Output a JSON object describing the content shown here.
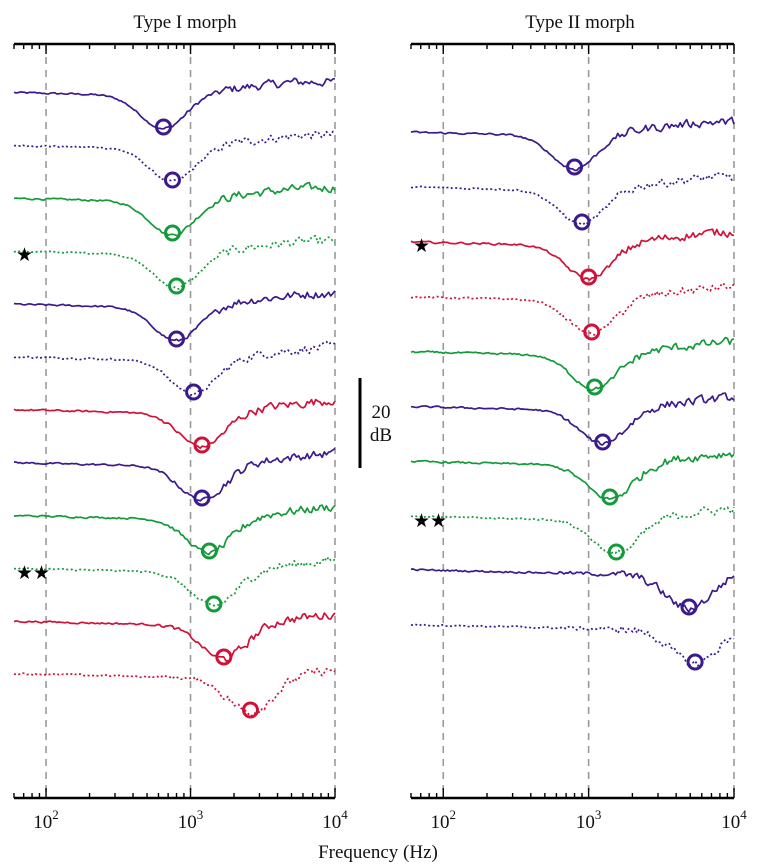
{
  "chart_data": [
    {
      "type": "line",
      "title": "Type I morph",
      "x_scale": "log",
      "xlim": [
        60,
        10000
      ],
      "x_ticks": [
        {
          "value": 100,
          "label": "10",
          "exp": "2"
        },
        {
          "value": 1000,
          "label": "10",
          "exp": "3"
        },
        {
          "value": 10000,
          "label": "10",
          "exp": "4"
        }
      ],
      "grid": "vertical dashed at 10^2, 10^3, 10^4",
      "series": [
        {
          "color": "#3a1a8c",
          "style": "solid",
          "minimum": 650,
          "stars": 0
        },
        {
          "color": "#3a1a8c",
          "style": "dotted",
          "minimum": 750,
          "stars": 0
        },
        {
          "color": "#149a3a",
          "style": "solid",
          "minimum": 750,
          "stars": 0
        },
        {
          "color": "#149a3a",
          "style": "dotted",
          "minimum": 800,
          "stars": 1
        },
        {
          "color": "#3a1a8c",
          "style": "solid",
          "minimum": 800,
          "stars": 0
        },
        {
          "color": "#3a1a8c",
          "style": "dotted",
          "minimum": 1050,
          "stars": 0
        },
        {
          "color": "#d01238",
          "style": "solid",
          "minimum": 1200,
          "stars": 0
        },
        {
          "color": "#3a1a8c",
          "style": "solid",
          "minimum": 1200,
          "stars": 0
        },
        {
          "color": "#149a3a",
          "style": "solid",
          "minimum": 1350,
          "stars": 0
        },
        {
          "color": "#149a3a",
          "style": "dotted",
          "minimum": 1450,
          "stars": 2
        },
        {
          "color": "#d01238",
          "style": "solid",
          "minimum": 1700,
          "stars": 0
        },
        {
          "color": "#d01238",
          "style": "dotted",
          "minimum": 2600,
          "stars": 0
        }
      ]
    },
    {
      "type": "line",
      "title": "Type II morph",
      "x_scale": "log",
      "xlim": [
        60,
        10000
      ],
      "x_ticks": [
        {
          "value": 100,
          "label": "10",
          "exp": "2"
        },
        {
          "value": 1000,
          "label": "10",
          "exp": "3"
        },
        {
          "value": 10000,
          "label": "10",
          "exp": "4"
        }
      ],
      "grid": "vertical dashed at 10^2, 10^3, 10^4",
      "series": [
        {
          "color": "#3a1a8c",
          "style": "solid",
          "minimum": 800,
          "stars": 0
        },
        {
          "color": "#3a1a8c",
          "style": "dotted",
          "minimum": 900,
          "stars": 0
        },
        {
          "color": "#d01238",
          "style": "solid",
          "minimum": 1000,
          "stars": 1
        },
        {
          "color": "#d01238",
          "style": "dotted",
          "minimum": 1050,
          "stars": 0
        },
        {
          "color": "#149a3a",
          "style": "solid",
          "minimum": 1100,
          "stars": 0
        },
        {
          "color": "#3a1a8c",
          "style": "solid",
          "minimum": 1250,
          "stars": 0
        },
        {
          "color": "#149a3a",
          "style": "solid",
          "minimum": 1400,
          "stars": 0
        },
        {
          "color": "#149a3a",
          "style": "dotted",
          "minimum": 1550,
          "stars": 2
        },
        {
          "color": "#3a1a8c",
          "style": "solid",
          "minimum": 4900,
          "stars": 0
        },
        {
          "color": "#3a1a8c",
          "style": "dotted",
          "minimum": 5400,
          "stars": 0
        }
      ]
    }
  ],
  "xlabel": "Frequency (Hz)",
  "scale_bar": {
    "value": "20",
    "unit": "dB"
  },
  "star_glyph": "★"
}
